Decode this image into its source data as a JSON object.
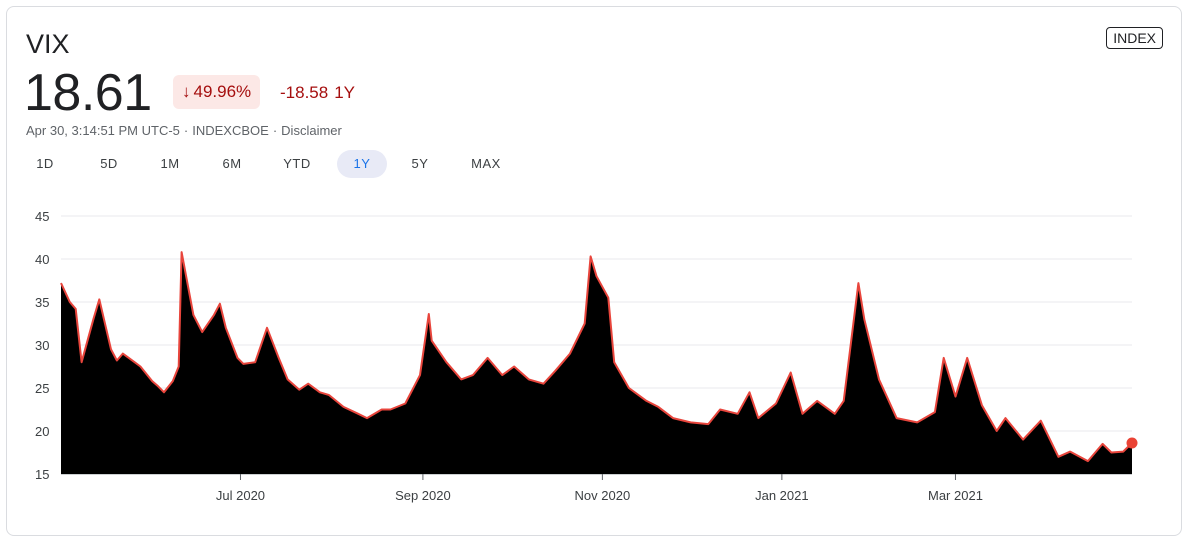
{
  "quote": {
    "symbol": "VIX",
    "price": "18.61",
    "pct_change": "49.96%",
    "abs_change": "-18.58",
    "period": "1Y",
    "timestamp": "Apr 30, 3:14:51 PM UTC-5",
    "exchange": "INDEXCBOE",
    "disclaimer": "Disclaimer",
    "type_badge": "INDEX"
  },
  "ranges": [
    "1D",
    "5D",
    "1M",
    "6M",
    "YTD",
    "1Y",
    "5Y",
    "MAX"
  ],
  "active_range": "1Y",
  "colors": {
    "line": "#e8453c",
    "fill": "#000000",
    "negative": "#a50e0e",
    "badge_bg": "#fce8e6"
  },
  "chart_data": {
    "type": "area",
    "x_start": "2020-05-01",
    "x_end": "2021-04-30",
    "x_tick_labels": [
      "Jul 2020",
      "Sep 2020",
      "Nov 2020",
      "Jan 2021",
      "Mar 2021"
    ],
    "x_tick_dates": [
      "2020-07-01",
      "2020-09-01",
      "2020-11-01",
      "2021-01-01",
      "2021-03-01"
    ],
    "ylim": [
      15,
      45
    ],
    "y_ticks": [
      15,
      20,
      25,
      30,
      35,
      40,
      45
    ],
    "grid": true,
    "series": [
      {
        "x": [
          "2020-05-01",
          "2020-05-04",
          "2020-05-06",
          "2020-05-08",
          "2020-05-12",
          "2020-05-14",
          "2020-05-18",
          "2020-05-20",
          "2020-05-22",
          "2020-05-26",
          "2020-05-28",
          "2020-06-01",
          "2020-06-03",
          "2020-06-05",
          "2020-06-08",
          "2020-06-10",
          "2020-06-11",
          "2020-06-15",
          "2020-06-18",
          "2020-06-22",
          "2020-06-24",
          "2020-06-26",
          "2020-06-30",
          "2020-07-02",
          "2020-07-06",
          "2020-07-10",
          "2020-07-14",
          "2020-07-17",
          "2020-07-21",
          "2020-07-24",
          "2020-07-28",
          "2020-07-31",
          "2020-08-05",
          "2020-08-10",
          "2020-08-13",
          "2020-08-18",
          "2020-08-21",
          "2020-08-26",
          "2020-08-31",
          "2020-09-03",
          "2020-09-04",
          "2020-09-09",
          "2020-09-14",
          "2020-09-18",
          "2020-09-23",
          "2020-09-28",
          "2020-10-02",
          "2020-10-07",
          "2020-10-12",
          "2020-10-16",
          "2020-10-21",
          "2020-10-26",
          "2020-10-28",
          "2020-10-30",
          "2020-11-03",
          "2020-11-05",
          "2020-11-10",
          "2020-11-16",
          "2020-11-20",
          "2020-11-25",
          "2020-12-01",
          "2020-12-07",
          "2020-12-11",
          "2020-12-17",
          "2020-12-21",
          "2020-12-24",
          "2020-12-30",
          "2021-01-04",
          "2021-01-08",
          "2021-01-13",
          "2021-01-19",
          "2021-01-22",
          "2021-01-27",
          "2021-01-29",
          "2021-02-03",
          "2021-02-09",
          "2021-02-16",
          "2021-02-22",
          "2021-02-25",
          "2021-03-01",
          "2021-03-05",
          "2021-03-10",
          "2021-03-15",
          "2021-03-18",
          "2021-03-24",
          "2021-03-30",
          "2021-04-05",
          "2021-04-09",
          "2021-04-15",
          "2021-04-20",
          "2021-04-23",
          "2021-04-27",
          "2021-04-30"
        ],
        "y": [
          37.2,
          35.0,
          34.2,
          28.0,
          33.0,
          35.3,
          29.5,
          28.2,
          29.0,
          28.0,
          27.5,
          25.8,
          25.2,
          24.5,
          25.8,
          27.5,
          40.8,
          33.5,
          31.5,
          33.5,
          34.8,
          32.0,
          28.5,
          27.8,
          28.0,
          32.0,
          28.5,
          26.0,
          24.8,
          25.5,
          24.5,
          24.2,
          22.8,
          22.0,
          21.5,
          22.5,
          22.5,
          23.2,
          26.5,
          33.6,
          30.5,
          28.0,
          26.0,
          26.5,
          28.5,
          26.5,
          27.5,
          26.0,
          25.5,
          27.0,
          29.0,
          32.5,
          40.3,
          38.0,
          35.5,
          28.0,
          25.0,
          23.5,
          22.8,
          21.5,
          21.0,
          20.8,
          22.5,
          22.0,
          24.5,
          21.5,
          23.2,
          26.8,
          22.0,
          23.5,
          22.0,
          23.5,
          37.2,
          33.0,
          26.0,
          21.5,
          21.0,
          22.2,
          28.5,
          24.0,
          28.5,
          23.0,
          20.0,
          21.5,
          19.0,
          21.2,
          17.0,
          17.6,
          16.5,
          18.5,
          17.5,
          17.6,
          18.6
        ]
      }
    ]
  }
}
